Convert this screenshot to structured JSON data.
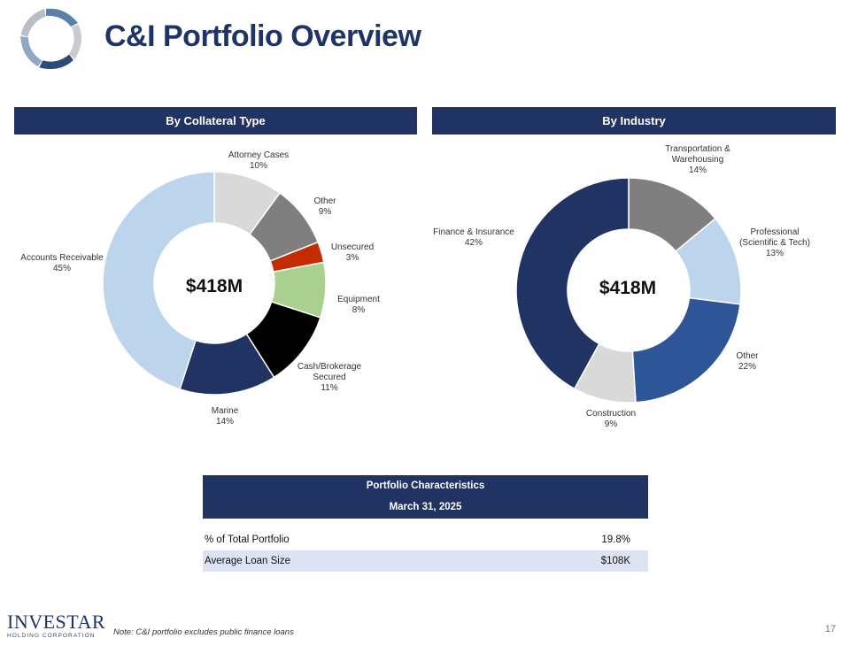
{
  "header": {
    "title": "C&I Portfolio Overview"
  },
  "colors": {
    "navy": "#213363",
    "light_blue": "#bcd5ed",
    "light_gray": "#d9d9d9",
    "gray": "#7f7f7f",
    "red": "#c42d02",
    "green": "#a9d08e",
    "black": "#000000",
    "medium_blue": "#2e5597"
  },
  "chart_data": [
    {
      "type": "pie",
      "variant": "donut",
      "title": "By Collateral Type",
      "center_label": "$418M",
      "slices": [
        {
          "name": "Attorney Cases",
          "percent_label": "10%",
          "value": 10,
          "color": "#d9d9d9"
        },
        {
          "name": "Other",
          "percent_label": "9%",
          "value": 9,
          "color": "#7f7f7f"
        },
        {
          "name": "Unsecured",
          "percent_label": "3%",
          "value": 3,
          "color": "#c42d02"
        },
        {
          "name": "Equipment",
          "percent_label": "8%",
          "value": 8,
          "color": "#a9d08e"
        },
        {
          "name": "Cash/Brokerage Secured",
          "label_lines": [
            "Cash/Brokerage",
            "Secured"
          ],
          "percent_label": "11%",
          "value": 11,
          "color": "#000000"
        },
        {
          "name": "Marine",
          "percent_label": "14%",
          "value": 14,
          "color": "#213363"
        },
        {
          "name": "Accounts Receivable",
          "percent_label": "45%",
          "value": 45,
          "color": "#bcd5ed"
        }
      ]
    },
    {
      "type": "pie",
      "variant": "donut",
      "title": "By Industry",
      "center_label": "$418M",
      "slices": [
        {
          "name": "Transportation & Warehousing",
          "label_lines": [
            "Transportation  &",
            "Warehousing"
          ],
          "percent_label": "14%",
          "value": 14,
          "color": "#7f7f7f"
        },
        {
          "name": "Professional (Scientific & Tech)",
          "label_lines": [
            "Professional",
            "(Scientific  & Tech)"
          ],
          "percent_label": "13%",
          "value": 13,
          "color": "#bcd5ed"
        },
        {
          "name": "Other",
          "percent_label": "22%",
          "value": 22,
          "color": "#2e5597"
        },
        {
          "name": "Construction",
          "percent_label": "9%",
          "value": 9,
          "color": "#d9d9d9"
        },
        {
          "name": "Finance & Insurance",
          "percent_label": "42%",
          "value": 42,
          "color": "#213363"
        }
      ]
    }
  ],
  "table": {
    "title": "Portfolio Characteristics",
    "date": "March 31, 2025",
    "rows": [
      {
        "label": "% of Total Portfolio",
        "value": "19.8%"
      },
      {
        "label": "Average Loan Size",
        "value": "$108K"
      }
    ]
  },
  "footer": {
    "logo_main": "INVESTAR",
    "logo_sub": "HOLDING CORPORATION",
    "note": "Note: C&I portfolio excludes public finance loans",
    "page_number": "17"
  }
}
